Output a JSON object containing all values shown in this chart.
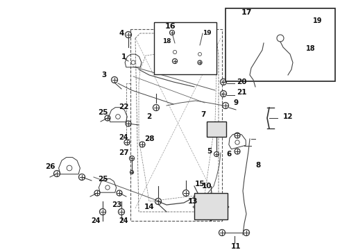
{
  "bg_color": "#ffffff",
  "lc": "#222222",
  "fig_width": 4.9,
  "fig_height": 3.6,
  "dpi": 100,
  "fs": 7.5
}
